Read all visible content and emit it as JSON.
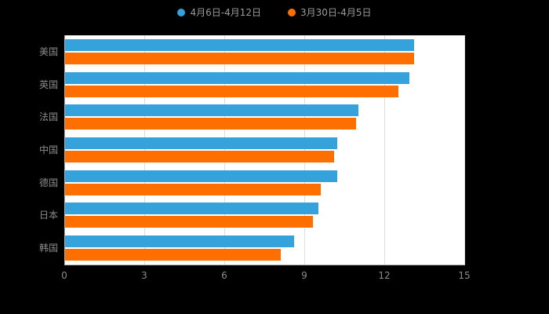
{
  "page": {
    "background_color": "#000000",
    "plot_background_color": "#ffffff"
  },
  "legend": [
    {
      "label": "4月6日-4月12日",
      "color": "#36A2DB"
    },
    {
      "label": "3月30日-4月5日",
      "color": "#FF6F00"
    }
  ],
  "chart_data": {
    "type": "bar",
    "orientation": "horizontal",
    "title": "",
    "xlabel": "",
    "ylabel": "",
    "categories": [
      "美国",
      "英国",
      "法国",
      "中国",
      "德国",
      "日本",
      "韩国"
    ],
    "series": [
      {
        "name": "4月6日-4月12日",
        "color": "#36A2DB",
        "values": [
          13.1,
          12.9,
          11.0,
          10.2,
          10.2,
          9.5,
          8.6
        ]
      },
      {
        "name": "3月30日-4月5日",
        "color": "#FF6F00",
        "values": [
          13.1,
          12.5,
          10.9,
          10.1,
          9.6,
          9.3,
          8.1
        ]
      }
    ],
    "xlim": [
      0,
      15
    ],
    "xticks": [
      0,
      3,
      6,
      9,
      12,
      15
    ],
    "grid": true,
    "legend_position": "top"
  }
}
